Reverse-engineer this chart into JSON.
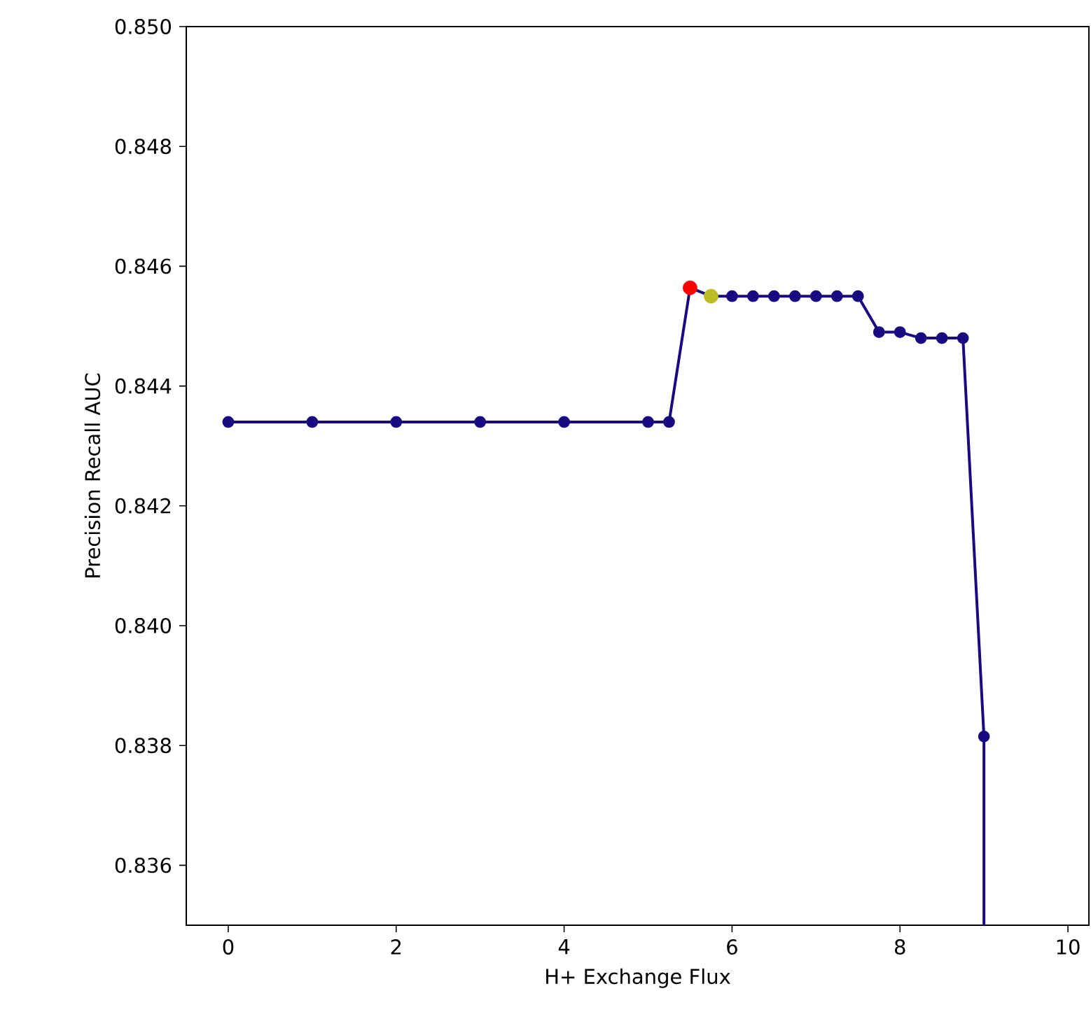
{
  "chart_data": {
    "type": "line",
    "xlabel": "H+ Exchange Flux",
    "ylabel": "Precision Recall AUC",
    "marker": "circle",
    "xlim": [
      -0.5,
      10.25
    ],
    "ylim": [
      0.835,
      0.85
    ],
    "xticks": [
      0,
      2,
      4,
      6,
      8,
      10
    ],
    "yticks": [
      {
        "value": 0.836,
        "label": "0.836"
      },
      {
        "value": 0.838,
        "label": "0.838"
      },
      {
        "value": 0.84,
        "label": "0.840"
      },
      {
        "value": 0.842,
        "label": "0.842"
      },
      {
        "value": 0.844,
        "label": "0.844"
      },
      {
        "value": 0.846,
        "label": "0.846"
      },
      {
        "value": 0.848,
        "label": "0.848"
      },
      {
        "value": 0.85,
        "label": "0.850"
      }
    ],
    "series": [
      {
        "color": "#1a0a82",
        "x": [
          0,
          1,
          2,
          3,
          4,
          5,
          5.25,
          5.5,
          5.75,
          6,
          6.25,
          6.5,
          6.75,
          7,
          7.25,
          7.5,
          7.75,
          8,
          8.25,
          8.5,
          8.75,
          9
        ],
        "values": [
          0.8434,
          0.8434,
          0.8434,
          0.8434,
          0.8434,
          0.8434,
          0.8434,
          0.84564,
          0.8455,
          0.8455,
          0.8455,
          0.8455,
          0.8455,
          0.8455,
          0.8455,
          0.8455,
          0.8449,
          0.8449,
          0.8448,
          0.8448,
          0.8448,
          0.83815
        ]
      },
      {
        "marker": "none",
        "color": "#1a0a82",
        "x": [
          9,
          9
        ],
        "values": [
          0.83815,
          0.835
        ]
      },
      {
        "type": "scatter",
        "colors": [
          "#ff0000",
          "#bcbd22"
        ],
        "x": [
          5.5,
          5.75
        ],
        "values": [
          0.84564,
          0.8455
        ]
      }
    ]
  }
}
